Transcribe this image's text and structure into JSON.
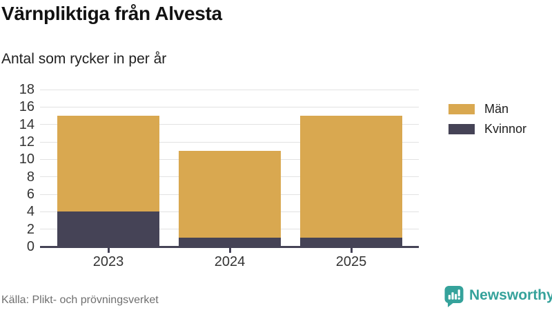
{
  "header": {
    "title": "Värnpliktiga från Alvesta",
    "subtitle": "Antal som rycker in per år"
  },
  "chart_data": {
    "type": "bar",
    "stacked": true,
    "categories": [
      "2023",
      "2024",
      "2025"
    ],
    "series": [
      {
        "name": "Män",
        "color": "#D9A850",
        "values": [
          11,
          10,
          14
        ]
      },
      {
        "name": "Kvinnor",
        "color": "#454356",
        "values": [
          4,
          1,
          1
        ]
      }
    ],
    "totals": [
      15,
      11,
      15
    ],
    "ylim": [
      0,
      18
    ],
    "ytick_step": 2,
    "grid": true,
    "legend_position": "right",
    "style": {
      "grid_color": "#E2E2E2",
      "axis_color": "#454356",
      "tick_label_color": "#333333"
    }
  },
  "footer": {
    "source": "Källa: Plikt- och prövningsverket",
    "brand": "Newsworthy",
    "brand_color": "#35A29B"
  }
}
